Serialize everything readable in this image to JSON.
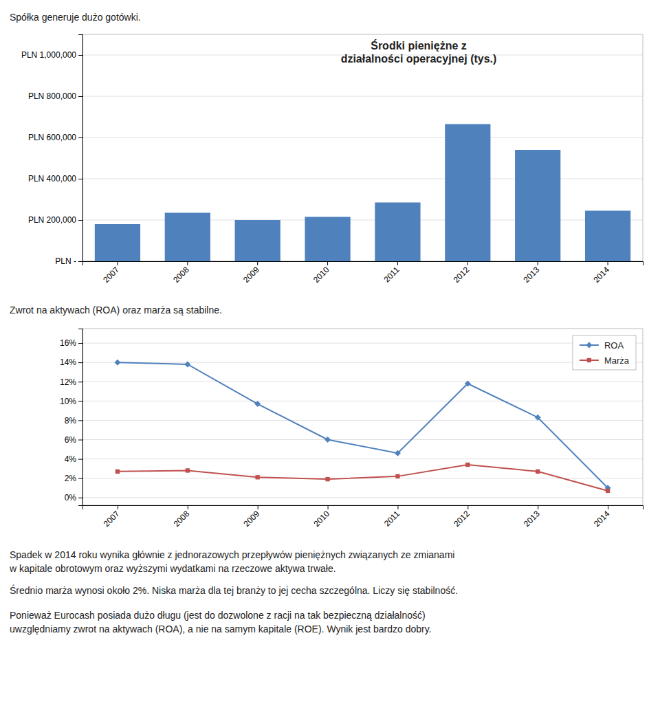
{
  "chart_data": [
    {
      "type": "bar",
      "title": "Środki pieniężne z\ndziałalności operacyjnej (tys.)",
      "annotations": [
        "Spółka generuje dużo gotówki."
      ],
      "categories": [
        "2007",
        "2008",
        "2009",
        "2010",
        "2011",
        "2012",
        "2013",
        "2014"
      ],
      "values": [
        180000,
        235000,
        200000,
        215000,
        285000,
        665000,
        540000,
        245000
      ],
      "color": "#4F81BD",
      "ylim": [
        0,
        1100000
      ],
      "yticks": [
        {
          "value": 0,
          "label": "PLN -"
        },
        {
          "value": 200000,
          "label": "PLN 200,000"
        },
        {
          "value": 400000,
          "label": "PLN 400,000"
        },
        {
          "value": 600000,
          "label": "PLN 600,000"
        },
        {
          "value": 800000,
          "label": "PLN 800,000"
        },
        {
          "value": 1000000,
          "label": "PLN 1,000,000"
        }
      ],
      "grid": true
    },
    {
      "type": "line",
      "annotations": [
        "Zwrot na aktywach (ROA) oraz marża są stabilne.",
        "Spadek w 2014 roku wynika głównie z jednorazowych przepływów pieniężnych związanych ze zmianami",
        "w kapitale obrotowym oraz wyższymi wydatkami na rzeczowe aktywa trwałe.",
        "Średnio marża wynosi około 2%. Niska marża dla tej branży to jej cecha szczególna. Liczy się stabilność.",
        "Ponieważ Eurocash posiada dużo długu (jest do dozwolone z racji na tak bezpieczną działalność)",
        "uwzględniamy zwrot na aktywach (ROA), a nie na samym kapitale (ROE). Wynik jest bardzo dobry."
      ],
      "categories": [
        "2007",
        "2008",
        "2009",
        "2010",
        "2011",
        "2012",
        "2013",
        "2014"
      ],
      "series": [
        {
          "name": "ROA",
          "color": "#4F81BD",
          "marker": "diamond",
          "values": [
            0.14,
            0.138,
            0.097,
            0.06,
            0.046,
            0.118,
            0.083,
            0.01
          ]
        },
        {
          "name": "Marża",
          "color": "#C0504D",
          "marker": "square",
          "values": [
            0.027,
            0.028,
            0.021,
            0.019,
            0.022,
            0.034,
            0.027,
            0.007
          ]
        }
      ],
      "ylim": [
        -0.008,
        0.175
      ],
      "yticks": [
        {
          "value": 0.0,
          "label": "0%"
        },
        {
          "value": 0.02,
          "label": "2%"
        },
        {
          "value": 0.04,
          "label": "4%"
        },
        {
          "value": 0.06,
          "label": "6%"
        },
        {
          "value": 0.08,
          "label": "8%"
        },
        {
          "value": 0.1,
          "label": "10%"
        },
        {
          "value": 0.12,
          "label": "12%"
        },
        {
          "value": 0.14,
          "label": "14%"
        },
        {
          "value": 0.16,
          "label": "16%"
        }
      ],
      "grid": true,
      "legend": "upper right"
    }
  ]
}
